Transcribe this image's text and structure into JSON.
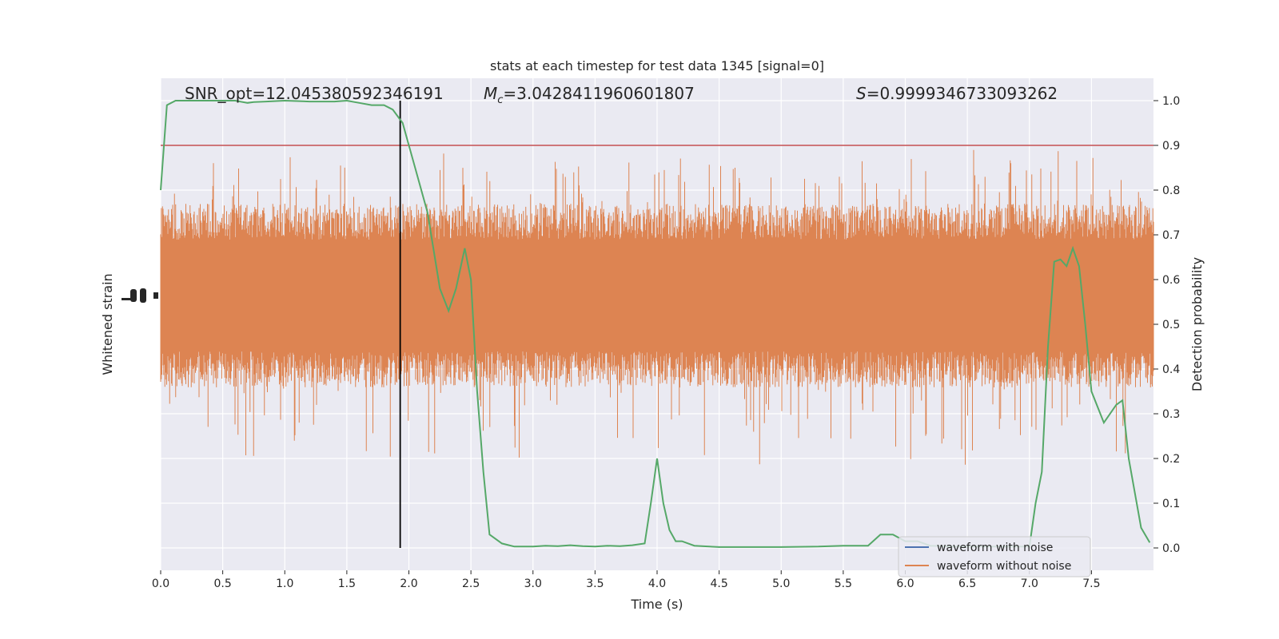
{
  "chart_data": {
    "type": "line",
    "title": "stats at each timestep for test data 1345 [signal=0]",
    "xlabel": "Time (s)",
    "ylabel_left": "Whitened strain",
    "ylabel_right": "Detection probability",
    "xlim": [
      0,
      8
    ],
    "ylim_right": [
      -0.05,
      1.05
    ],
    "x_ticks": [
      "0.0",
      "0.5",
      "1.0",
      "1.5",
      "2.0",
      "2.5",
      "3.0",
      "3.5",
      "4.0",
      "4.5",
      "5.0",
      "5.5",
      "6.0",
      "6.5",
      "7.0",
      "7.5"
    ],
    "y_ticks_right": [
      "0.0",
      "0.1",
      "0.2",
      "0.3",
      "0.4",
      "0.5",
      "0.6",
      "0.7",
      "0.8",
      "0.9",
      "1.0"
    ],
    "annotations": {
      "snr": "SNR_opt=12.045380592346191",
      "mc_symbol": "M",
      "mc_sub": "c",
      "mc_value": "=3.0428411960601807",
      "s_symbol": "S",
      "s_value": "=0.9999346733093262"
    },
    "threshold": 0.9,
    "marker_time": 1.93,
    "legend": [
      "waveform with noise",
      "waveform without noise"
    ],
    "legend_position": "lower-right",
    "grid": true,
    "colors": {
      "noise_waveform": "#4c72b0",
      "clean_waveform": "#dd8452",
      "probability": "#55a868",
      "threshold": "#c44e52",
      "marker": "#000000",
      "background": "#eaeaf2"
    },
    "series": [
      {
        "name": "Detection probability",
        "x": [
          0.0,
          0.05,
          0.12,
          0.2,
          0.3,
          0.4,
          0.5,
          0.6,
          0.7,
          0.75,
          0.85,
          1.0,
          1.2,
          1.4,
          1.5,
          1.6,
          1.7,
          1.8,
          1.87,
          1.95,
          2.05,
          2.15,
          2.25,
          2.32,
          2.38,
          2.45,
          2.5,
          2.55,
          2.6,
          2.65,
          2.75,
          2.85,
          3.0,
          3.1,
          3.2,
          3.3,
          3.4,
          3.5,
          3.6,
          3.7,
          3.8,
          3.9,
          3.95,
          4.0,
          4.05,
          4.1,
          4.15,
          4.2,
          4.3,
          4.5,
          4.8,
          5.0,
          5.3,
          5.5,
          5.6,
          5.7,
          5.8,
          5.9,
          6.0,
          6.1,
          6.2,
          6.4,
          6.6,
          6.8,
          7.0,
          7.05,
          7.1,
          7.15,
          7.2,
          7.25,
          7.3,
          7.35,
          7.4,
          7.45,
          7.5,
          7.6,
          7.7,
          7.75,
          7.8,
          7.9,
          7.97
        ],
        "values": [
          0.8,
          0.99,
          1.0,
          1.0,
          1.0,
          1.0,
          1.0,
          1.0,
          0.995,
          0.997,
          0.998,
          1.0,
          0.998,
          0.998,
          1.0,
          0.995,
          0.99,
          0.99,
          0.98,
          0.95,
          0.85,
          0.75,
          0.58,
          0.53,
          0.58,
          0.67,
          0.6,
          0.35,
          0.17,
          0.03,
          0.01,
          0.003,
          0.003,
          0.005,
          0.004,
          0.006,
          0.004,
          0.003,
          0.005,
          0.004,
          0.006,
          0.01,
          0.1,
          0.2,
          0.1,
          0.04,
          0.015,
          0.015,
          0.005,
          0.002,
          0.002,
          0.002,
          0.003,
          0.005,
          0.005,
          0.005,
          0.03,
          0.03,
          0.015,
          0.015,
          0.005,
          0.003,
          0.003,
          0.003,
          0.003,
          0.1,
          0.17,
          0.45,
          0.64,
          0.645,
          0.63,
          0.67,
          0.63,
          0.5,
          0.35,
          0.28,
          0.32,
          0.33,
          0.2,
          0.045,
          0.012
        ]
      }
    ]
  }
}
